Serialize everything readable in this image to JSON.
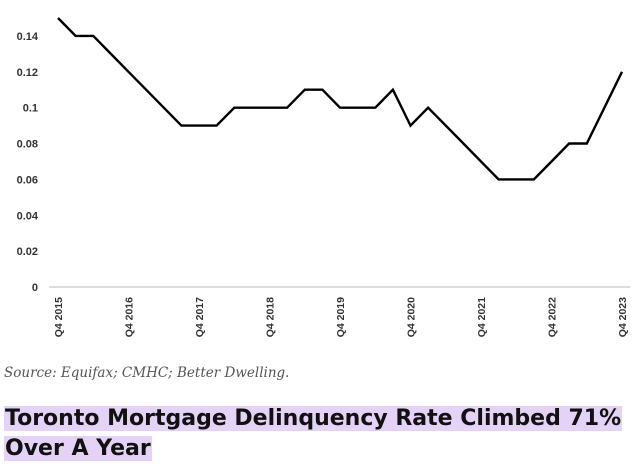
{
  "chart_data": {
    "type": "line",
    "title": "",
    "xlabel": "",
    "ylabel": "",
    "ylim": [
      0,
      0.15
    ],
    "yticks": [
      "0",
      "0.02",
      "0.04",
      "0.06",
      "0.08",
      "0.1",
      "0.12",
      "0.14"
    ],
    "xticks": [
      "Q4 2015",
      "Q4 2016",
      "Q4 2017",
      "Q4 2018",
      "Q4 2019",
      "Q4 2020",
      "Q4 2021",
      "Q4 2022",
      "Q4 2023"
    ],
    "x": [
      "Q4 2015",
      "Q1 2016",
      "Q2 2016",
      "Q3 2016",
      "Q4 2016",
      "Q1 2017",
      "Q2 2017",
      "Q3 2017",
      "Q4 2017",
      "Q1 2018",
      "Q2 2018",
      "Q3 2018",
      "Q4 2018",
      "Q1 2019",
      "Q2 2019",
      "Q3 2019",
      "Q4 2019",
      "Q1 2020",
      "Q2 2020",
      "Q3 2020",
      "Q4 2020",
      "Q1 2021",
      "Q2 2021",
      "Q3 2021",
      "Q4 2021",
      "Q1 2022",
      "Q2 2022",
      "Q3 2022",
      "Q4 2022",
      "Q1 2023",
      "Q2 2023",
      "Q3 2023",
      "Q4 2023"
    ],
    "series": [
      {
        "values": [
          0.15,
          0.14,
          0.14,
          0.13,
          0.12,
          0.11,
          0.1,
          0.09,
          0.09,
          0.09,
          0.1,
          0.1,
          0.1,
          0.1,
          0.11,
          0.11,
          0.1,
          0.1,
          0.1,
          0.11,
          0.09,
          0.1,
          0.09,
          0.08,
          0.07,
          0.06,
          0.06,
          0.06,
          0.07,
          0.08,
          0.08,
          0.1,
          0.12
        ]
      }
    ],
    "line_color": "#000000",
    "grid": false
  },
  "source_text": "Source: Equifax; CMHC; Better Dwelling.",
  "headline": "Toronto Mortgage Delinquency Rate Climbed 71% Over A Year",
  "highlight_color": "#e4d2f7"
}
